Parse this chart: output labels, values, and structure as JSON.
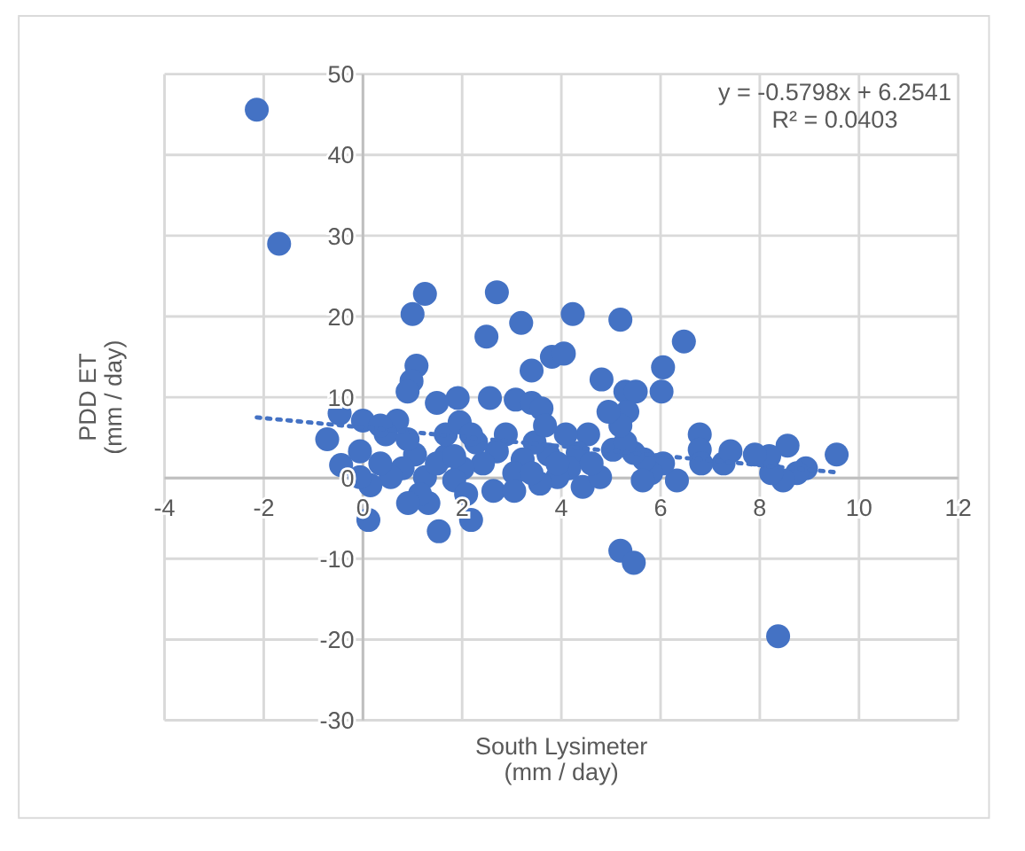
{
  "chart_data": {
    "type": "scatter",
    "xlabel": "South Lysimeter\n(mm / day)",
    "ylabel": "PDD ET\n(mm / day)",
    "xlim": [
      -4,
      12
    ],
    "xticks": [
      -4,
      -2,
      0,
      2,
      4,
      6,
      8,
      10,
      12
    ],
    "ylim": [
      -30,
      50
    ],
    "yticks": [
      -30,
      -20,
      -10,
      0,
      10,
      20,
      30,
      40,
      50
    ],
    "grid": true,
    "marker": "circle",
    "annotations": [
      "y = -0.5798x + 6.2541\nR² = 0.0403"
    ],
    "series": [
      {
        "type": "scatter",
        "color": "#4472c4",
        "x": [
          -2.14,
          -1.69,
          1.25,
          1.0,
          2.7,
          2.49,
          3.19,
          4.23,
          5.19,
          6.47,
          1.08,
          0.98,
          0.9,
          3.4,
          3.81,
          4.05,
          4.81,
          5.29,
          5.5,
          6.05,
          6.02,
          5.33,
          1.91,
          -0.47,
          0.0,
          0.69,
          -0.72,
          -0.44,
          2.56,
          3.08,
          3.4,
          3.6,
          1.49,
          0.11,
          1.32,
          1.53,
          2.18,
          2.63,
          5.19,
          5.46,
          8.37,
          9.55,
          8.93,
          8.75,
          8.47,
          8.23,
          8.56,
          8.19,
          7.9,
          7.27,
          7.41,
          6.79,
          6.79,
          6.82,
          6.33,
          6.05,
          5.81,
          5.67,
          5.46,
          5.04,
          5.29,
          5.19,
          4.95,
          4.54,
          4.33,
          4.16,
          3.92,
          3.74,
          3.46,
          3.22,
          3.05,
          2.88,
          2.7,
          2.42,
          2.28,
          2.01,
          1.84,
          1.67,
          1.25,
          1.05,
          0.8,
          0.56,
          0.35,
          0.15,
          -0.06,
          1.15,
          0.91,
          2.08,
          3.05,
          3.57,
          4.43,
          4.78,
          3.92,
          4.61,
          5.64,
          3.4,
          1.67,
          1.95,
          2.18,
          0.46,
          0.9,
          0.35,
          1.49,
          1.84,
          4.09,
          3.67,
          -0.06
        ],
        "values": [
          45.6,
          29.0,
          22.8,
          20.3,
          23.0,
          17.5,
          19.2,
          20.3,
          19.6,
          16.9,
          13.9,
          12.0,
          10.7,
          13.3,
          15.0,
          15.4,
          12.2,
          10.7,
          10.7,
          13.7,
          10.7,
          8.2,
          9.9,
          8.0,
          7.1,
          7.1,
          4.8,
          1.6,
          9.9,
          9.7,
          9.3,
          8.6,
          9.3,
          -5.2,
          -3.1,
          -6.6,
          -5.2,
          -1.6,
          -9.0,
          -10.5,
          -19.6,
          2.9,
          1.2,
          0.6,
          -0.3,
          0.6,
          4.0,
          2.7,
          2.9,
          1.8,
          3.3,
          5.4,
          3.5,
          1.8,
          -0.3,
          1.8,
          0.6,
          2.3,
          3.1,
          3.5,
          4.4,
          6.5,
          8.2,
          5.4,
          3.1,
          1.2,
          0.1,
          2.9,
          4.4,
          2.3,
          0.6,
          5.4,
          3.3,
          1.8,
          4.4,
          1.2,
          -0.3,
          2.7,
          0.1,
          2.9,
          1.2,
          0.1,
          1.8,
          -0.9,
          0.1,
          -2.0,
          -3.1,
          -2.0,
          -1.6,
          -0.7,
          -1.1,
          0.1,
          1.8,
          1.8,
          -0.3,
          0.6,
          5.4,
          6.9,
          5.4,
          5.4,
          4.8,
          6.5,
          1.8,
          2.7,
          5.4,
          6.5,
          3.3
        ]
      },
      {
        "type": "line",
        "color": "#4472c4",
        "line_style": "dotted",
        "marker": "none",
        "x": [
          -2.14,
          9.55
        ],
        "values": [
          7.5,
          0.7
        ]
      }
    ]
  }
}
